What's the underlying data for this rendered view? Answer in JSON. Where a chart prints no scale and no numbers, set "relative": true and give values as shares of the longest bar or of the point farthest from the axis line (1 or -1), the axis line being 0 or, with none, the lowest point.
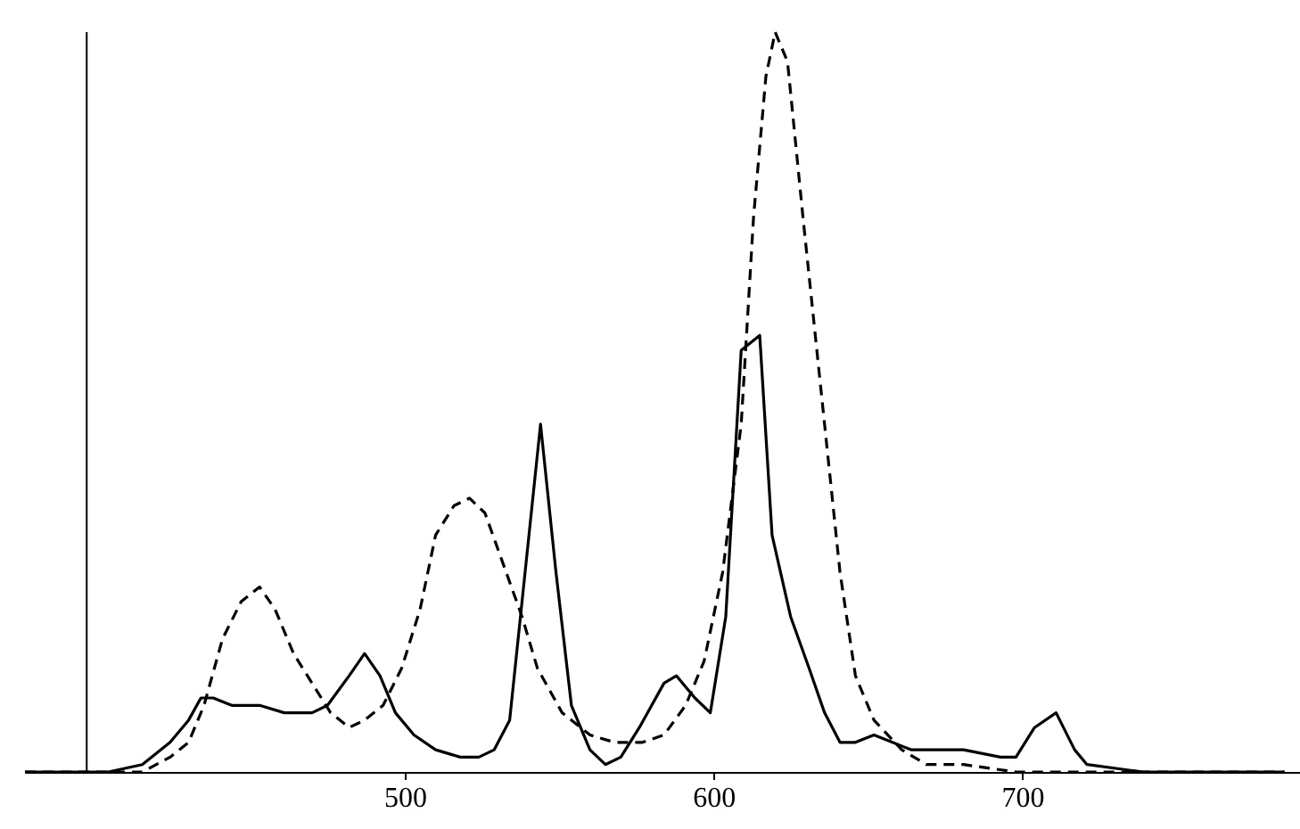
{
  "chart_data": {
    "type": "line",
    "relative": true,
    "xlim": [
      377,
      790
    ],
    "xticks": [
      500,
      600,
      700
    ],
    "grid": false,
    "marker": "none",
    "ref_lines": [
      {
        "axis": "x",
        "value": 397,
        "color": "#000000"
      }
    ],
    "series": [
      {
        "color": "#000000",
        "line_style": "solid",
        "x": [
          377,
          404,
          415,
          424,
          430,
          434,
          438,
          444,
          453,
          461,
          470,
          475,
          482,
          487,
          492,
          497,
          503,
          510,
          518,
          524,
          529,
          534,
          539,
          544,
          549,
          554,
          560,
          565,
          570,
          576,
          584,
          588,
          594,
          599,
          604,
          609,
          615,
          619,
          625,
          631,
          636,
          641,
          646,
          652,
          658,
          664,
          669,
          681,
          693,
          698,
          704,
          711,
          717,
          721,
          739,
          773,
          785
        ],
        "values": [
          0,
          0,
          0.01,
          0.04,
          0.07,
          0.1,
          0.1,
          0.09,
          0.09,
          0.08,
          0.08,
          0.09,
          0.13,
          0.16,
          0.13,
          0.08,
          0.05,
          0.03,
          0.02,
          0.02,
          0.03,
          0.07,
          0.27,
          0.47,
          0.27,
          0.09,
          0.03,
          0.01,
          0.02,
          0.06,
          0.12,
          0.13,
          0.1,
          0.08,
          0.21,
          0.57,
          0.59,
          0.32,
          0.21,
          0.14,
          0.08,
          0.04,
          0.04,
          0.05,
          0.04,
          0.03,
          0.03,
          0.03,
          0.02,
          0.02,
          0.06,
          0.08,
          0.03,
          0.01,
          0,
          0,
          0
        ]
      },
      {
        "color": "#000000",
        "line_style": "dashed",
        "x": [
          377,
          404,
          415,
          424,
          430,
          435,
          441,
          447,
          453,
          458,
          464,
          470,
          476,
          482,
          487,
          493,
          499,
          505,
          510,
          516,
          521,
          526,
          532,
          538,
          543,
          551,
          560,
          568,
          577,
          584,
          591,
          597,
          603,
          609,
          613,
          617,
          620,
          624,
          629,
          635,
          641,
          646,
          652,
          661,
          669,
          681,
          698,
          727,
          785
        ],
        "values": [
          0,
          0,
          0,
          0.02,
          0.04,
          0.09,
          0.18,
          0.23,
          0.25,
          0.22,
          0.16,
          0.12,
          0.08,
          0.06,
          0.07,
          0.09,
          0.14,
          0.22,
          0.32,
          0.36,
          0.37,
          0.35,
          0.28,
          0.21,
          0.14,
          0.08,
          0.05,
          0.04,
          0.04,
          0.05,
          0.09,
          0.15,
          0.27,
          0.47,
          0.75,
          0.94,
          1,
          0.96,
          0.75,
          0.51,
          0.27,
          0.13,
          0.07,
          0.03,
          0.01,
          0.01,
          0,
          0,
          0
        ]
      }
    ]
  }
}
